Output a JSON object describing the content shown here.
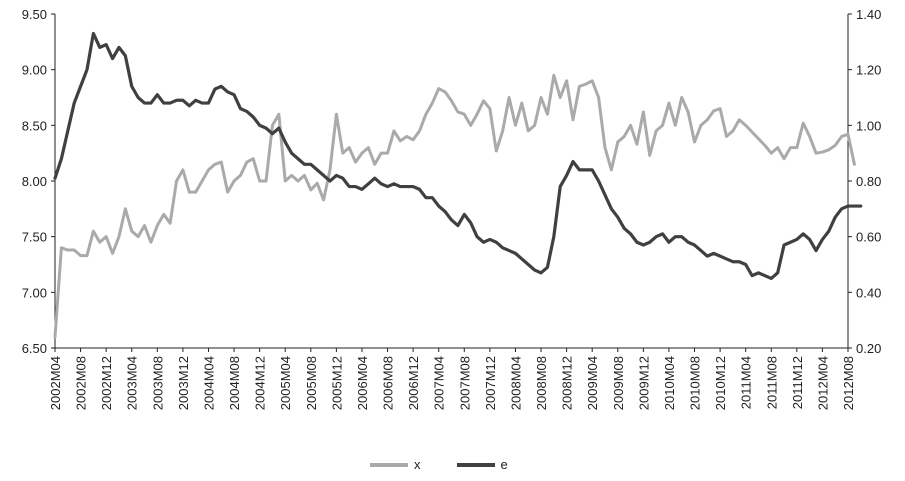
{
  "chart_data": {
    "type": "line",
    "title": "",
    "xlabel": "",
    "ylabel_left": "",
    "ylabel_right": "",
    "ylim_left": [
      6.5,
      9.5
    ],
    "ylim_right": [
      0.2,
      1.4
    ],
    "yticks_left": [
      "6.50",
      "7.00",
      "7.50",
      "8.00",
      "8.50",
      "9.00",
      "9.50"
    ],
    "yticks_right": [
      "0.20",
      "0.40",
      "0.60",
      "0.80",
      "1.00",
      "1.20",
      "1.40"
    ],
    "grid": false,
    "legend_position": "bottom-center",
    "x_tick_labels": [
      "2002M04",
      "2002M08",
      "2002M12",
      "2003M04",
      "2003M08",
      "2003M12",
      "2004M04",
      "2004M08",
      "2004M12",
      "2005M04",
      "2005M08",
      "2005M12",
      "2006M04",
      "2006M08",
      "2006M12",
      "2007M04",
      "2007M08",
      "2007M12",
      "2008M04",
      "2008M08",
      "2008M12",
      "2009M04",
      "2009M08",
      "2009M12",
      "2010M04",
      "2010M08",
      "2010M12",
      "2011M04",
      "2011M08",
      "2011M12",
      "2012M04",
      "2012M08"
    ],
    "x_start": "2002M04",
    "x_end": "2012M08",
    "series": [
      {
        "name": "x",
        "axis": "left",
        "color": "#aaaaaa",
        "values": [
          6.6,
          7.4,
          7.38,
          7.38,
          7.33,
          7.33,
          7.55,
          7.45,
          7.5,
          7.35,
          7.5,
          7.75,
          7.55,
          7.5,
          7.6,
          7.45,
          7.6,
          7.7,
          7.62,
          8.0,
          8.1,
          7.9,
          7.9,
          8.0,
          8.1,
          8.15,
          8.17,
          7.9,
          8.0,
          8.05,
          8.17,
          8.2,
          8.0,
          8.0,
          8.5,
          8.6,
          8.0,
          8.05,
          8.0,
          8.05,
          7.92,
          7.98,
          7.83,
          8.1,
          8.6,
          8.25,
          8.3,
          8.17,
          8.25,
          8.3,
          8.15,
          8.25,
          8.25,
          8.45,
          8.36,
          8.4,
          8.37,
          8.45,
          8.6,
          8.7,
          8.83,
          8.8,
          8.72,
          8.62,
          8.6,
          8.5,
          8.6,
          8.72,
          8.65,
          8.27,
          8.45,
          8.75,
          8.5,
          8.7,
          8.45,
          8.5,
          8.75,
          8.6,
          8.95,
          8.75,
          8.9,
          8.55,
          8.85,
          8.87,
          8.9,
          8.75,
          8.3,
          8.1,
          8.35,
          8.4,
          8.5,
          8.33,
          8.62,
          8.23,
          8.45,
          8.5,
          8.7,
          8.5,
          8.75,
          8.62,
          8.35,
          8.5,
          8.55,
          8.63,
          8.65,
          8.4,
          8.45,
          8.55,
          8.5,
          8.44,
          8.38,
          8.32,
          8.25,
          8.3,
          8.2,
          8.3,
          8.3,
          8.52,
          8.4,
          8.25,
          8.26,
          8.28,
          8.32,
          8.4,
          8.42,
          8.15
        ]
      },
      {
        "name": "e",
        "axis": "right",
        "color": "#404040",
        "values": [
          0.81,
          0.88,
          0.98,
          1.08,
          1.14,
          1.2,
          1.33,
          1.28,
          1.29,
          1.24,
          1.28,
          1.25,
          1.14,
          1.1,
          1.08,
          1.08,
          1.11,
          1.08,
          1.08,
          1.09,
          1.09,
          1.07,
          1.09,
          1.08,
          1.08,
          1.13,
          1.14,
          1.12,
          1.11,
          1.06,
          1.05,
          1.03,
          1.0,
          0.99,
          0.97,
          0.99,
          0.94,
          0.9,
          0.88,
          0.86,
          0.86,
          0.84,
          0.82,
          0.8,
          0.82,
          0.81,
          0.78,
          0.78,
          0.77,
          0.79,
          0.81,
          0.79,
          0.78,
          0.79,
          0.78,
          0.78,
          0.78,
          0.77,
          0.74,
          0.74,
          0.71,
          0.69,
          0.66,
          0.64,
          0.68,
          0.65,
          0.6,
          0.58,
          0.59,
          0.58,
          0.56,
          0.55,
          0.54,
          0.52,
          0.5,
          0.48,
          0.47,
          0.49,
          0.6,
          0.78,
          0.82,
          0.87,
          0.84,
          0.84,
          0.84,
          0.8,
          0.75,
          0.7,
          0.67,
          0.63,
          0.61,
          0.58,
          0.57,
          0.58,
          0.6,
          0.61,
          0.58,
          0.6,
          0.6,
          0.58,
          0.57,
          0.55,
          0.53,
          0.54,
          0.53,
          0.52,
          0.51,
          0.51,
          0.5,
          0.46,
          0.47,
          0.46,
          0.45,
          0.47,
          0.57,
          0.58,
          0.59,
          0.61,
          0.59,
          0.55,
          0.59,
          0.62,
          0.67,
          0.7,
          0.71,
          0.71,
          0.71
        ]
      }
    ]
  },
  "legend": {
    "x_label": "x",
    "e_label": "e"
  }
}
